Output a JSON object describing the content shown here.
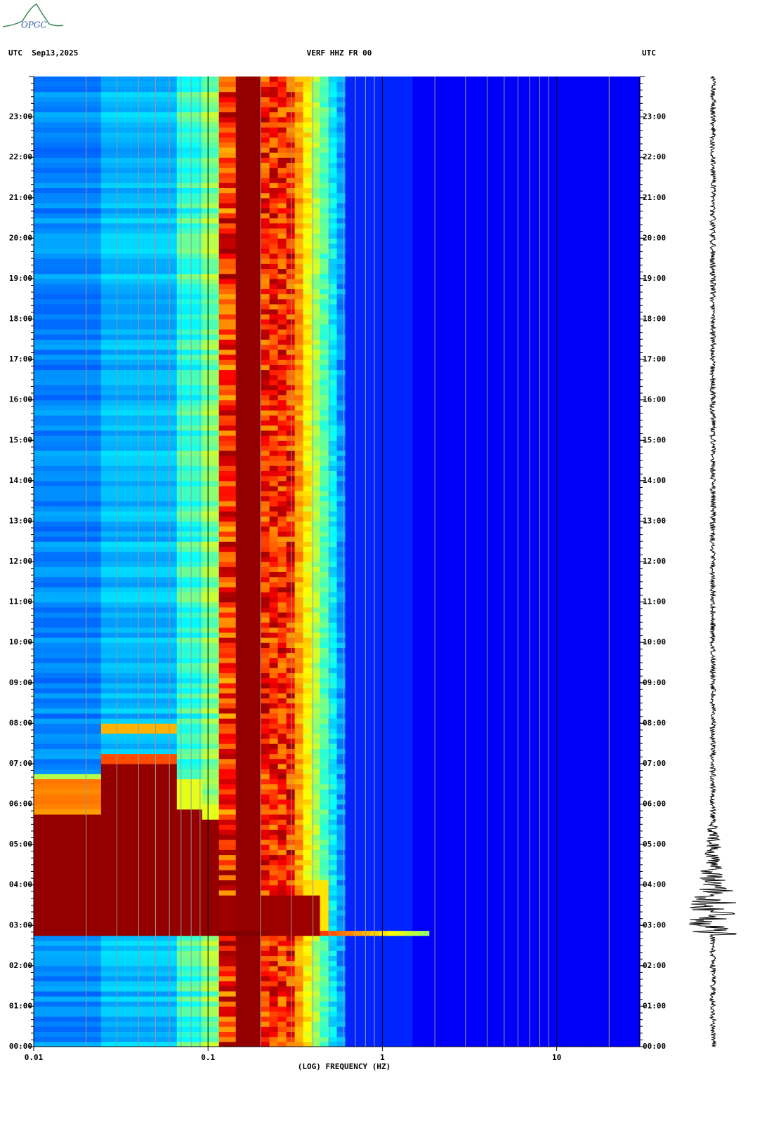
{
  "chart_data": {
    "type": "spectrogram",
    "title": "VERF HHZ FR 00",
    "date_label": "UTC  Sep13,2025",
    "right_label": "UTC",
    "xlabel": "(LOG) FREQUENCY (HZ)",
    "xscale": "log",
    "xlim": [
      0.01,
      30
    ],
    "xticks": [
      0.01,
      0.1,
      1,
      10
    ],
    "ylim": [
      0,
      24
    ],
    "yticks": [
      {
        "value": 0,
        "label": "00:00"
      },
      {
        "value": 1,
        "label": "01:00"
      },
      {
        "value": 2,
        "label": "02:00"
      },
      {
        "value": 3,
        "label": "03:00"
      },
      {
        "value": 4,
        "label": "04:00"
      },
      {
        "value": 5,
        "label": "05:00"
      },
      {
        "value": 6,
        "label": "06:00"
      },
      {
        "value": 7,
        "label": "07:00"
      },
      {
        "value": 8,
        "label": "08:00"
      },
      {
        "value": 9,
        "label": "09:00"
      },
      {
        "value": 10,
        "label": "10:00"
      },
      {
        "value": 11,
        "label": "11:00"
      },
      {
        "value": 12,
        "label": "12:00"
      },
      {
        "value": 13,
        "label": "13:00"
      },
      {
        "value": 14,
        "label": "14:00"
      },
      {
        "value": 15,
        "label": "15:00"
      },
      {
        "value": 16,
        "label": "16:00"
      },
      {
        "value": 17,
        "label": "17:00"
      },
      {
        "value": 18,
        "label": "18:00"
      },
      {
        "value": 19,
        "label": "19:00"
      },
      {
        "value": 20,
        "label": "20:00"
      },
      {
        "value": 21,
        "label": "21:00"
      },
      {
        "value": 22,
        "label": "22:00"
      },
      {
        "value": 23,
        "label": "23:00"
      }
    ]
  },
  "logo": "OPGC"
}
